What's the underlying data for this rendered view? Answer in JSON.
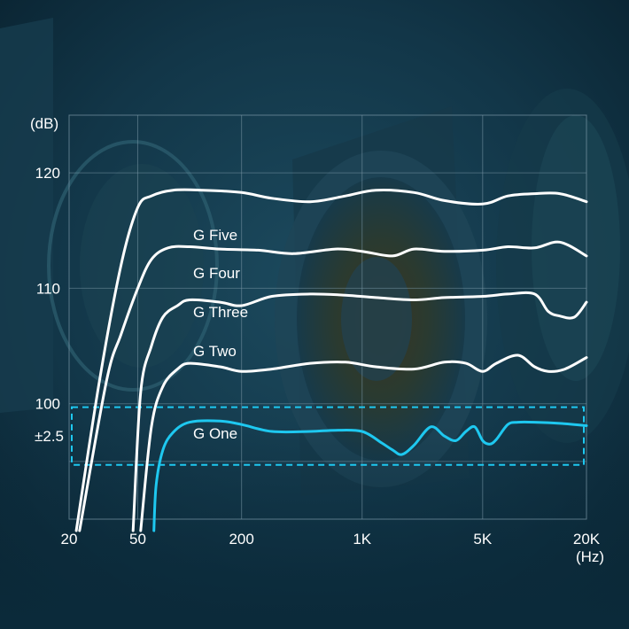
{
  "colors": {
    "background": "#0b2a3a",
    "curve": "#ffffff",
    "accent": "#1ec8f0",
    "grid": "#7a97a6"
  },
  "chart_data": {
    "type": "line",
    "xscale": "log",
    "xlim": [
      20,
      20000
    ],
    "ylim": [
      90,
      125
    ],
    "grid": true,
    "xlabel": "(Hz)",
    "ylabel": "(dB)",
    "x_ticks": [
      "20",
      "50",
      "200",
      "1K",
      "5K",
      "20K"
    ],
    "y_ticks": [
      "120",
      "110",
      "100"
    ],
    "band_label": "±2.5",
    "series": [
      {
        "name": "G Five",
        "highlight": false,
        "x": [
          22,
          30,
          40,
          50,
          60,
          80,
          120,
          200,
          300,
          500,
          800,
          1200,
          2000,
          3000,
          5000,
          7000,
          10000,
          14000,
          20000
        ],
        "y": [
          89,
          102,
          112,
          117,
          118,
          118.5,
          118.5,
          118.3,
          117.8,
          117.5,
          118,
          118.5,
          118.3,
          117.6,
          117.3,
          118,
          118.2,
          118.2,
          117.5
        ]
      },
      {
        "name": "G Four",
        "highlight": false,
        "x": [
          23,
          33,
          40,
          50,
          60,
          75,
          100,
          150,
          250,
          400,
          700,
          1000,
          1500,
          2000,
          3000,
          5000,
          7000,
          10000,
          14000,
          20000
        ],
        "y": [
          89,
          102,
          106,
          110,
          112.5,
          113.5,
          113.6,
          113.4,
          113.3,
          113,
          113.4,
          113.2,
          112.8,
          113.4,
          113.2,
          113.3,
          113.6,
          113.5,
          114,
          112.8
        ]
      },
      {
        "name": "G Three",
        "highlight": false,
        "x": [
          47,
          52,
          60,
          70,
          85,
          100,
          150,
          200,
          300,
          500,
          800,
          1200,
          2000,
          3000,
          5000,
          7000,
          10000,
          12000,
          14000,
          17000,
          20000
        ],
        "y": [
          89,
          101,
          105,
          107.5,
          108.5,
          109,
          108.8,
          108.5,
          109.3,
          109.5,
          109.4,
          109.2,
          109,
          109.2,
          109.3,
          109.5,
          109.5,
          108,
          107.6,
          107.5,
          108.8
        ]
      },
      {
        "name": "G Two",
        "highlight": false,
        "x": [
          52,
          60,
          70,
          85,
          100,
          150,
          200,
          300,
          500,
          800,
          1200,
          2000,
          3000,
          4000,
          5000,
          6000,
          8000,
          10000,
          12000,
          15000,
          20000
        ],
        "y": [
          89,
          98,
          101.5,
          103,
          103.5,
          103.2,
          102.8,
          103,
          103.5,
          103.6,
          103.2,
          103,
          103.6,
          103.5,
          102.8,
          103.5,
          104.2,
          103.2,
          102.8,
          103,
          104
        ]
      },
      {
        "name": "G One",
        "highlight": true,
        "x": [
          62,
          64,
          70,
          80,
          100,
          150,
          200,
          300,
          500,
          700,
          1000,
          1300,
          1500,
          1700,
          2000,
          2500,
          3000,
          3500,
          4000,
          4500,
          5000,
          5500,
          6000,
          7000,
          8000,
          10000,
          14000,
          20000
        ],
        "y": [
          89,
          93,
          96,
          97.5,
          98.4,
          98.5,
          98.2,
          97.6,
          97.6,
          97.7,
          97.6,
          96.6,
          96,
          95.6,
          96.4,
          98,
          97.2,
          96.8,
          97.6,
          98,
          96.8,
          96.5,
          96.9,
          98.2,
          98.4,
          98.4,
          98.3,
          98.1
        ]
      }
    ]
  }
}
